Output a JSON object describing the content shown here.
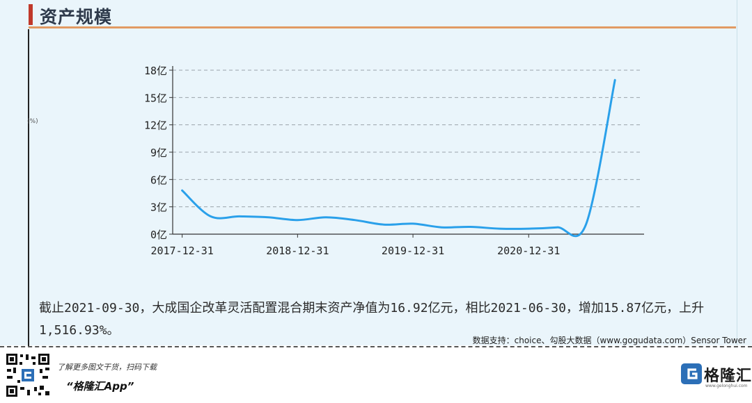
{
  "header": {
    "title": "资产规模",
    "accent_color": "#c0392b",
    "rule_color": "#e19a63"
  },
  "chart_data": {
    "type": "line",
    "title": "",
    "xlabel": "",
    "ylabel": "",
    "y_unit_label": "(%)",
    "x_tick_labels": [
      "2017-12-31",
      "2018-12-31",
      "2019-12-31",
      "2020-12-31"
    ],
    "y_tick_labels": [
      "0亿",
      "3亿",
      "6亿",
      "9亿",
      "12亿",
      "15亿",
      "18亿"
    ],
    "y_ticks": [
      0,
      3,
      6,
      9,
      12,
      15,
      18
    ],
    "ylim": [
      0,
      18
    ],
    "xlim": [
      "2017-12-01",
      "2021-12-31"
    ],
    "grid": true,
    "grid_style": "dashed",
    "line_color": "#2aa0ea",
    "series": [
      {
        "x": [
          "2017-12-31",
          "2018-03-31",
          "2018-06-30",
          "2018-09-30",
          "2018-12-31",
          "2019-03-31",
          "2019-06-30",
          "2019-09-30",
          "2019-12-31",
          "2020-03-31",
          "2020-06-30",
          "2020-09-30",
          "2020-12-31",
          "2021-03-31",
          "2021-06-30",
          "2021-09-30"
        ],
        "values": [
          4.8,
          1.95,
          1.95,
          1.85,
          1.55,
          1.85,
          1.55,
          1.05,
          1.15,
          0.75,
          0.8,
          0.6,
          0.6,
          0.75,
          1.05,
          16.92
        ]
      }
    ]
  },
  "summary": {
    "text": "截止2021-09-30，大成国企改革灵活配置混合期末资产净值为16.92亿元，相比2021-06-30，增加15.87亿元，上升1,516.93%。"
  },
  "source": {
    "text": "数据支持：choice、勾股大数据（www.gogudata.com）Sensor Tower"
  },
  "footer": {
    "qr_caption": "了解更多图文干货，扫码下载",
    "app_name": "“格隆汇App”",
    "brand_name": "格隆汇",
    "brand_url": "www.gelonghui.com",
    "brand_color": "#2c6fb7"
  }
}
